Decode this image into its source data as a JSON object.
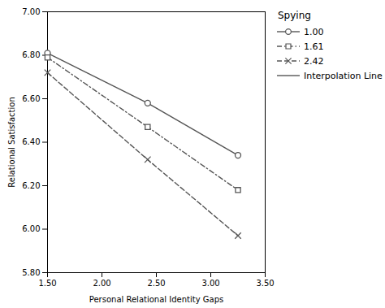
{
  "chart_data": {
    "type": "line",
    "x_label": "Personal Relational Identity Gaps",
    "y_label": "Relational Satisfaction",
    "x": [
      1.5,
      2.42,
      3.25
    ],
    "series": [
      {
        "name": "1.00",
        "color": "#555555",
        "values": [
          6.81,
          6.58,
          6.34
        ],
        "marker": "circle",
        "line_style": "solid"
      },
      {
        "name": "1.61",
        "color": "#555555",
        "values": [
          6.79,
          6.47,
          6.18
        ],
        "marker": "square",
        "line_style": "dashdot"
      },
      {
        "name": "2.42",
        "color": "#555555",
        "values": [
          6.72,
          6.32,
          5.97
        ],
        "marker": "x",
        "line_style": "dashed"
      }
    ],
    "legend_title": "Spying",
    "interpolation_label": "Interpolation Line",
    "legend": "right",
    "grid": false,
    "xlim": [
      1.5,
      3.5
    ],
    "ylim": [
      5.8,
      7.0
    ],
    "xticks": [
      {
        "value": 1.5,
        "label": "1.50"
      },
      {
        "value": 2.0,
        "label": "2.00"
      },
      {
        "value": 2.5,
        "label": "2.50"
      },
      {
        "value": 3.0,
        "label": "3.00"
      },
      {
        "value": 3.5,
        "label": "3.50"
      }
    ],
    "yticks": [
      {
        "value": 5.8,
        "label": "5.80"
      },
      {
        "value": 6.0,
        "label": "6.00"
      },
      {
        "value": 6.2,
        "label": "6.20"
      },
      {
        "value": 6.4,
        "label": "6.40"
      },
      {
        "value": 6.6,
        "label": "6.60"
      },
      {
        "value": 6.8,
        "label": "6.80"
      },
      {
        "value": 7.0,
        "label": "7.00"
      }
    ]
  }
}
